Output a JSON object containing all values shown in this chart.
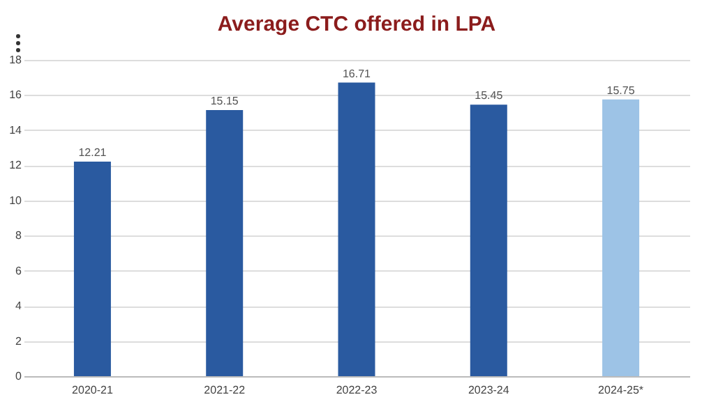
{
  "chart_data": {
    "type": "bar",
    "title": "Average CTC offered in LPA",
    "categories": [
      "2020-21",
      "2021-22",
      "2022-23",
      "2023-24",
      "2024-25*"
    ],
    "values": [
      12.21,
      15.15,
      16.71,
      15.45,
      15.75
    ],
    "colors": [
      "#2a5aa0",
      "#2a5aa0",
      "#2a5aa0",
      "#2a5aa0",
      "#9dc3e6"
    ],
    "ylim": [
      0,
      18
    ],
    "yticks": [
      0,
      2,
      4,
      6,
      8,
      10,
      12,
      14,
      16,
      18
    ],
    "grid": "y",
    "data_labels": true
  }
}
